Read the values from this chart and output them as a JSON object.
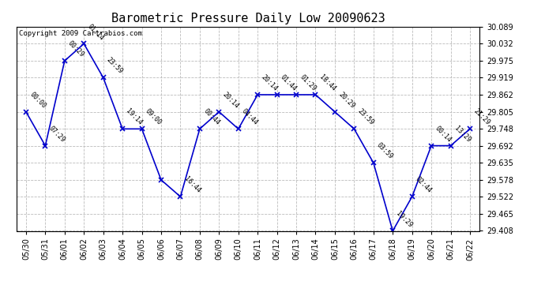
{
  "title": "Barometric Pressure Daily Low 20090623",
  "copyright": "Copyright 2009 Cartrabios.com",
  "x_labels": [
    "05/30",
    "05/31",
    "06/01",
    "06/02",
    "06/03",
    "06/04",
    "06/05",
    "06/06",
    "06/07",
    "06/08",
    "06/09",
    "06/10",
    "06/11",
    "06/12",
    "06/13",
    "06/14",
    "06/15",
    "06/16",
    "06/17",
    "06/18",
    "06/19",
    "06/20",
    "06/21",
    "06/22"
  ],
  "y_refined": [
    29.805,
    29.692,
    29.975,
    30.032,
    29.919,
    29.748,
    29.748,
    29.578,
    29.522,
    29.748,
    29.805,
    29.748,
    29.862,
    29.862,
    29.862,
    29.862,
    29.805,
    29.748,
    29.635,
    29.408,
    29.522,
    29.692,
    29.692,
    29.748
  ],
  "time_labels": [
    "00:00",
    "07:29",
    "00:29",
    "01:14",
    "23:59",
    "19:14",
    "09:00",
    "",
    "16:44",
    "00:44",
    "20:14",
    "04:44",
    "20:14",
    "01:44",
    "01:29",
    "18:44",
    "20:29",
    "23:59",
    "03:59",
    "19:29",
    "02:44",
    "00:14",
    "13:29",
    "21:29"
  ],
  "ylim_min": 29.408,
  "ylim_max": 30.089,
  "yticks": [
    29.408,
    29.465,
    29.522,
    29.578,
    29.635,
    29.692,
    29.748,
    29.805,
    29.862,
    29.919,
    29.975,
    30.032,
    30.089
  ],
  "line_color": "#0000CC",
  "marker_color": "#0000CC",
  "bg_color": "#ffffff",
  "grid_color": "#bbbbbb",
  "title_fontsize": 11,
  "tick_fontsize": 7,
  "copyright_fontsize": 6.5
}
